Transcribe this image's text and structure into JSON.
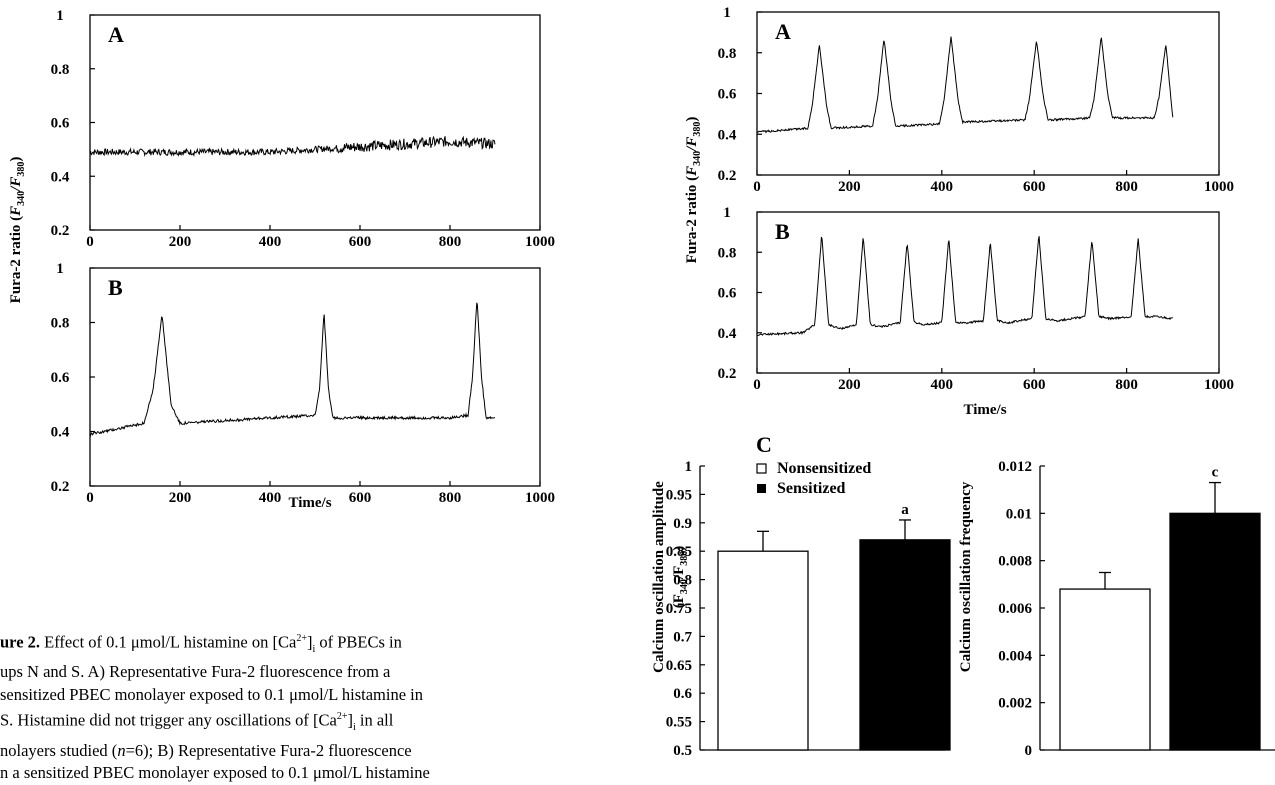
{
  "chart_data": [
    {
      "id": "left-A",
      "type": "line",
      "panel_label": "A",
      "xlim": [
        0,
        1000
      ],
      "ylim": [
        0.2,
        1
      ],
      "xticks": [
        "0",
        "200",
        "400",
        "600",
        "800",
        "1000"
      ],
      "yticks": [
        "0.2",
        "0.4",
        "0.6",
        "0.8",
        "1"
      ],
      "series": [
        {
          "x": [
            0,
            100,
            200,
            300,
            400,
            500,
            600,
            700,
            800,
            900
          ],
          "y": [
            0.49,
            0.49,
            0.49,
            0.49,
            0.49,
            0.5,
            0.51,
            0.52,
            0.53,
            0.52
          ]
        }
      ]
    },
    {
      "id": "left-B",
      "type": "line",
      "panel_label": "B",
      "xlim": [
        0,
        1000
      ],
      "ylim": [
        0.2,
        1
      ],
      "xticks": [
        "0",
        "200",
        "400",
        "600",
        "800",
        "1000"
      ],
      "yticks": [
        "0.2",
        "0.4",
        "0.6",
        "0.8",
        "1"
      ],
      "series": [
        {
          "x": [
            0,
            60,
            120,
            140,
            160,
            180,
            200,
            300,
            400,
            500,
            510,
            520,
            530,
            540,
            550,
            600,
            700,
            800,
            840,
            850,
            860,
            870,
            880,
            900
          ],
          "y": [
            0.39,
            0.41,
            0.43,
            0.55,
            0.83,
            0.5,
            0.43,
            0.44,
            0.45,
            0.46,
            0.55,
            0.84,
            0.55,
            0.45,
            0.45,
            0.45,
            0.45,
            0.45,
            0.46,
            0.6,
            0.89,
            0.6,
            0.45,
            0.45
          ]
        }
      ]
    },
    {
      "id": "right-A",
      "type": "line",
      "panel_label": "A",
      "xlim": [
        0,
        1000
      ],
      "ylim": [
        0.2,
        1
      ],
      "xticks": [
        "0",
        "200",
        "400",
        "600",
        "800",
        "1000"
      ],
      "yticks": [
        "0.2",
        "0.4",
        "0.6",
        "0.8",
        "1"
      ],
      "series": [
        {
          "x": [
            0,
            110,
            120,
            135,
            150,
            160,
            250,
            260,
            275,
            290,
            300,
            395,
            405,
            420,
            435,
            445,
            580,
            590,
            605,
            620,
            630,
            720,
            730,
            745,
            760,
            770,
            860,
            870,
            885,
            900
          ],
          "y": [
            0.41,
            0.43,
            0.55,
            0.84,
            0.55,
            0.43,
            0.44,
            0.56,
            0.87,
            0.56,
            0.44,
            0.45,
            0.57,
            0.88,
            0.57,
            0.46,
            0.47,
            0.58,
            0.86,
            0.58,
            0.47,
            0.48,
            0.58,
            0.88,
            0.58,
            0.48,
            0.48,
            0.58,
            0.84,
            0.48
          ]
        }
      ]
    },
    {
      "id": "right-B",
      "type": "line",
      "panel_label": "B",
      "xlim": [
        0,
        1000
      ],
      "ylim": [
        0.2,
        1
      ],
      "xticks": [
        "0",
        "200",
        "400",
        "600",
        "800",
        "1000"
      ],
      "yticks": [
        "0.2",
        "0.4",
        "0.6",
        "0.8",
        "1"
      ],
      "series": [
        {
          "x": [
            0,
            100,
            125,
            140,
            155,
            180,
            215,
            230,
            245,
            270,
            310,
            325,
            340,
            365,
            400,
            415,
            430,
            455,
            490,
            505,
            520,
            545,
            595,
            610,
            625,
            650,
            710,
            725,
            740,
            765,
            810,
            825,
            840,
            860,
            900
          ],
          "y": [
            0.39,
            0.4,
            0.44,
            0.89,
            0.44,
            0.42,
            0.44,
            0.88,
            0.44,
            0.43,
            0.45,
            0.85,
            0.45,
            0.44,
            0.45,
            0.87,
            0.45,
            0.45,
            0.46,
            0.85,
            0.46,
            0.45,
            0.47,
            0.89,
            0.47,
            0.46,
            0.48,
            0.86,
            0.48,
            0.47,
            0.48,
            0.87,
            0.48,
            0.48,
            0.47
          ]
        }
      ]
    },
    {
      "id": "right-C-amplitude",
      "type": "bar",
      "panel_label": "C",
      "categories": [
        "Nonsensitized",
        "Sensitized"
      ],
      "values": [
        0.85,
        0.87
      ],
      "errors": [
        0.035,
        0.035
      ],
      "sig_labels": [
        "",
        "a"
      ],
      "ylim": [
        0.5,
        1
      ],
      "yticks": [
        "0.5",
        "0.55",
        "0.6",
        "0.65",
        "0.7",
        "0.75",
        "0.8",
        "0.85",
        "0.9",
        "0.95",
        "1"
      ],
      "ylabel": "Calcium oscillation amplitude",
      "ylabel2_main": "(F",
      "ylabel2_sub1": "340",
      "ylabel2_mid": "/F",
      "ylabel2_sub2": "380",
      "ylabel2_end": ")"
    },
    {
      "id": "right-C-frequency",
      "type": "bar",
      "categories": [
        "Nonsensitized",
        "Sensitized"
      ],
      "values": [
        0.0068,
        0.01
      ],
      "errors": [
        0.0007,
        0.0013
      ],
      "sig_labels": [
        "",
        "c"
      ],
      "ylim": [
        0,
        0.012
      ],
      "yticks": [
        "0",
        "0.002",
        "0.004",
        "0.006",
        "0.008",
        "0.01",
        "0.012"
      ],
      "ylabel": "Calcium oscillation frequency"
    }
  ],
  "labels": {
    "ylabel_main": "Fura-2 ratio (",
    "ylabel_F": "F",
    "ylabel_sub1": "340",
    "ylabel_slash": "/",
    "ylabel_sub2": "380",
    "ylabel_close": ")",
    "xlabel": "Time/s",
    "legend_nonsensitized": "Nonsensitized",
    "legend_sensitized": "Sensitized"
  },
  "caption": {
    "line1_bold": "ure 2.",
    "line1_a": " Effect of 0.1 μmol/L histamine on [Ca",
    "line1_sup": "2+",
    "line1_b": "]",
    "line1_sub": "i",
    "line1_c": " of PBECs in",
    "line2": "ups N and S.  A) Representative Fura-2 fluorescence from a",
    "line3": "sensitized PBEC monolayer exposed to 0.1 μmol/L histamine in",
    "line4_a": "S.  Histamine did not trigger any oscillations of [Ca",
    "line4_sup": "2+",
    "line4_b": "]",
    "line4_sub": "i",
    "line4_c": " in all",
    "line5_a": "nolayers studied (",
    "line5_n": "n",
    "line5_b": "=6); B) Representative Fura-2 fluorescence",
    "line6": "n a sensitized PBEC monolayer exposed to 0.1 μmol/L histamine"
  }
}
